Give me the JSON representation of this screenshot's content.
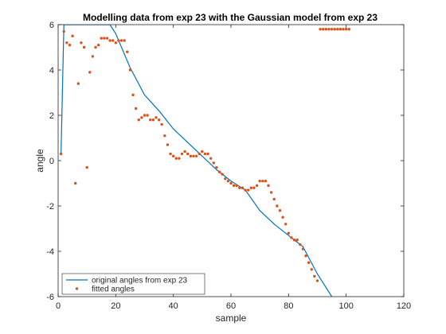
{
  "chart_data": {
    "type": "line",
    "title": "Modelling data from exp 23 with the Gaussian model from exp 23",
    "xlabel": "sample",
    "ylabel": "angle",
    "xlim": [
      0,
      120
    ],
    "ylim": [
      -6,
      6
    ],
    "xticks": [
      0,
      20,
      40,
      60,
      80,
      100,
      120
    ],
    "yticks": [
      -6,
      -4,
      -2,
      0,
      2,
      4,
      6
    ],
    "grid": false,
    "legend_position": "bottom-left",
    "series": [
      {
        "name": "original angles from exp 23",
        "style": "line",
        "color": "#0072BD",
        "x": [
          1,
          2,
          3,
          4,
          6,
          8,
          10,
          12,
          14,
          16,
          18,
          20,
          25,
          30,
          35,
          40,
          45,
          50,
          55,
          60,
          65,
          70,
          75,
          80,
          85,
          90,
          95
        ],
        "y": [
          0.3,
          6.0,
          6.0,
          6.0,
          6.0,
          6.0,
          6.0,
          6.0,
          6.0,
          6.0,
          6.0,
          5.6,
          4.1,
          2.9,
          2.2,
          1.4,
          0.8,
          0.2,
          -0.4,
          -0.9,
          -1.3,
          -2.2,
          -2.8,
          -3.3,
          -3.8,
          -5.0,
          -6.0
        ]
      },
      {
        "name": "fitted angles",
        "style": "scatter",
        "color": "#D95319",
        "x": [
          1,
          2,
          3,
          4,
          5,
          6,
          7,
          8,
          9,
          10,
          11,
          12,
          13,
          14,
          15,
          16,
          17,
          18,
          19,
          20,
          21,
          22,
          23,
          24,
          25,
          26,
          27,
          28,
          29,
          30,
          31,
          32,
          33,
          34,
          35,
          36,
          37,
          38,
          39,
          40,
          41,
          42,
          43,
          44,
          45,
          46,
          47,
          48,
          49,
          50,
          51,
          52,
          53,
          54,
          55,
          56,
          57,
          58,
          59,
          60,
          61,
          62,
          63,
          64,
          65,
          66,
          67,
          68,
          69,
          70,
          71,
          72,
          73,
          74,
          75,
          76,
          77,
          78,
          79,
          80,
          81,
          82,
          83,
          84,
          85,
          86,
          87,
          88,
          89,
          90,
          91,
          92,
          93,
          94,
          95,
          96,
          97,
          98,
          99,
          100,
          101
        ],
        "y": [
          0.3,
          5.7,
          5.2,
          5.1,
          5.5,
          -1.0,
          3.4,
          5.2,
          5.0,
          -0.3,
          3.9,
          4.6,
          5.0,
          5.1,
          5.4,
          5.4,
          5.4,
          5.3,
          5.3,
          5.2,
          5.3,
          5.3,
          5.3,
          4.8,
          4.0,
          2.9,
          2.3,
          1.8,
          1.9,
          2.0,
          2.0,
          1.8,
          1.8,
          1.9,
          1.8,
          1.6,
          1.1,
          0.7,
          0.3,
          0.2,
          0.1,
          0.1,
          0.3,
          0.4,
          0.3,
          0.2,
          0.2,
          0.2,
          0.3,
          0.4,
          0.3,
          0.3,
          0.1,
          -0.1,
          -0.3,
          -0.5,
          -0.6,
          -0.8,
          -0.9,
          -1.0,
          -1.1,
          -1.1,
          -1.2,
          -1.2,
          -1.3,
          -1.3,
          -1.2,
          -1.2,
          -1.1,
          -0.9,
          -0.9,
          -0.9,
          -1.1,
          -1.4,
          -1.7,
          -2.0,
          -2.2,
          -2.5,
          -2.8,
          -3.2,
          -3.4,
          -3.5,
          -3.5,
          -3.7,
          -3.9,
          -4.2,
          -4.5,
          -4.8,
          -5.1,
          -5.3,
          5.8,
          5.8,
          5.8,
          5.8,
          5.8,
          5.8,
          5.8,
          5.8,
          5.8,
          5.8,
          5.8
        ]
      }
    ]
  }
}
